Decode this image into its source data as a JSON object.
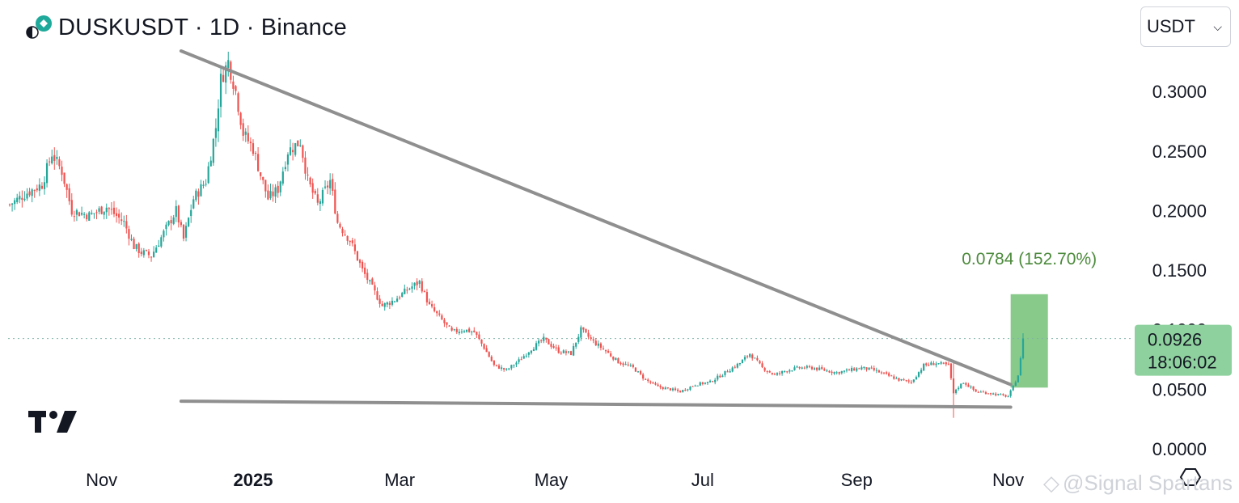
{
  "header": {
    "title": "DUSKUSDT · 1D · Binance",
    "currency_selector": {
      "value": "USDT"
    }
  },
  "chart_data": {
    "type": "candlestick",
    "symbol": "DUSKUSDT",
    "interval": "1D",
    "exchange": "Binance",
    "x_ticks": [
      {
        "label": "Nov",
        "date": "2024-11-01",
        "bold": false
      },
      {
        "label": "2025",
        "date": "2025-01-01",
        "bold": true
      },
      {
        "label": "Mar",
        "date": "2025-03-01",
        "bold": false
      },
      {
        "label": "May",
        "date": "2025-05-01",
        "bold": false
      },
      {
        "label": "Jul",
        "date": "2025-07-01",
        "bold": false
      },
      {
        "label": "Sep",
        "date": "2025-09-01",
        "bold": false
      },
      {
        "label": "Nov",
        "date": "2025-11-01",
        "bold": false
      }
    ],
    "y_ticks": [
      "0.3000",
      "0.2500",
      "0.2000",
      "0.1500",
      "0.1000",
      "0.0500",
      "0.0000"
    ],
    "ylim": [
      0,
      0.34
    ],
    "last_price": {
      "value": "0.0926",
      "countdown": "18:06:02",
      "price": 0.0926
    },
    "price_range_tool": {
      "label": "0.0784 (152.70%)",
      "from_price": 0.0514,
      "to_price": 0.1298,
      "start_date": "2025-11-02",
      "end_date": "2025-11-17"
    },
    "trendlines": [
      {
        "name": "descending resistance",
        "start": {
          "date": "2024-12-03",
          "price": 0.334
        },
        "end": {
          "date": "2025-11-02",
          "price": 0.054
        }
      },
      {
        "name": "horizontal support",
        "start": {
          "date": "2024-12-03",
          "price": 0.04
        },
        "end": {
          "date": "2025-11-02",
          "price": 0.035
        }
      }
    ],
    "price_path": [
      {
        "date": "2024-09-25",
        "price": 0.205
      },
      {
        "date": "2024-10-02",
        "price": 0.215
      },
      {
        "date": "2024-10-08",
        "price": 0.222
      },
      {
        "date": "2024-10-12",
        "price": 0.248
      },
      {
        "date": "2024-10-16",
        "price": 0.233
      },
      {
        "date": "2024-10-20",
        "price": 0.2
      },
      {
        "date": "2024-10-27",
        "price": 0.196
      },
      {
        "date": "2024-11-03",
        "price": 0.203
      },
      {
        "date": "2024-11-10",
        "price": 0.19
      },
      {
        "date": "2024-11-14",
        "price": 0.17
      },
      {
        "date": "2024-11-17",
        "price": 0.165
      },
      {
        "date": "2024-11-21",
        "price": 0.162
      },
      {
        "date": "2024-11-27",
        "price": 0.185
      },
      {
        "date": "2024-12-01",
        "price": 0.2
      },
      {
        "date": "2024-12-04",
        "price": 0.176
      },
      {
        "date": "2024-12-08",
        "price": 0.21
      },
      {
        "date": "2024-12-13",
        "price": 0.225
      },
      {
        "date": "2024-12-17",
        "price": 0.27
      },
      {
        "date": "2024-12-19",
        "price": 0.31
      },
      {
        "date": "2024-12-22",
        "price": 0.325
      },
      {
        "date": "2024-12-25",
        "price": 0.3
      },
      {
        "date": "2024-12-28",
        "price": 0.265
      },
      {
        "date": "2025-01-01",
        "price": 0.252
      },
      {
        "date": "2025-01-04",
        "price": 0.23
      },
      {
        "date": "2025-01-07",
        "price": 0.21
      },
      {
        "date": "2025-01-11",
        "price": 0.218
      },
      {
        "date": "2025-01-15",
        "price": 0.25
      },
      {
        "date": "2025-01-20",
        "price": 0.258
      },
      {
        "date": "2025-01-23",
        "price": 0.225
      },
      {
        "date": "2025-01-27",
        "price": 0.205
      },
      {
        "date": "2025-02-01",
        "price": 0.225
      },
      {
        "date": "2025-02-04",
        "price": 0.19
      },
      {
        "date": "2025-02-09",
        "price": 0.175
      },
      {
        "date": "2025-02-14",
        "price": 0.15
      },
      {
        "date": "2025-02-18",
        "price": 0.135
      },
      {
        "date": "2025-02-22",
        "price": 0.12
      },
      {
        "date": "2025-02-27",
        "price": 0.125
      },
      {
        "date": "2025-03-05",
        "price": 0.135
      },
      {
        "date": "2025-03-09",
        "price": 0.14
      },
      {
        "date": "2025-03-13",
        "price": 0.12
      },
      {
        "date": "2025-03-18",
        "price": 0.108
      },
      {
        "date": "2025-03-22",
        "price": 0.098
      },
      {
        "date": "2025-03-27",
        "price": 0.1
      },
      {
        "date": "2025-03-31",
        "price": 0.098
      },
      {
        "date": "2025-04-04",
        "price": 0.085
      },
      {
        "date": "2025-04-08",
        "price": 0.07
      },
      {
        "date": "2025-04-13",
        "price": 0.066
      },
      {
        "date": "2025-04-18",
        "price": 0.074
      },
      {
        "date": "2025-04-23",
        "price": 0.084
      },
      {
        "date": "2025-04-28",
        "price": 0.092
      },
      {
        "date": "2025-05-04",
        "price": 0.082
      },
      {
        "date": "2025-05-09",
        "price": 0.08
      },
      {
        "date": "2025-05-13",
        "price": 0.1
      },
      {
        "date": "2025-05-18",
        "price": 0.09
      },
      {
        "date": "2025-05-23",
        "price": 0.082
      },
      {
        "date": "2025-05-28",
        "price": 0.073
      },
      {
        "date": "2025-06-03",
        "price": 0.068
      },
      {
        "date": "2025-06-08",
        "price": 0.058
      },
      {
        "date": "2025-06-13",
        "price": 0.052
      },
      {
        "date": "2025-06-18",
        "price": 0.05
      },
      {
        "date": "2025-06-22",
        "price": 0.048
      },
      {
        "date": "2025-06-28",
        "price": 0.054
      },
      {
        "date": "2025-07-04",
        "price": 0.056
      },
      {
        "date": "2025-07-10",
        "price": 0.064
      },
      {
        "date": "2025-07-16",
        "price": 0.072
      },
      {
        "date": "2025-07-20",
        "price": 0.08
      },
      {
        "date": "2025-07-25",
        "price": 0.068
      },
      {
        "date": "2025-07-30",
        "price": 0.062
      },
      {
        "date": "2025-08-04",
        "price": 0.066
      },
      {
        "date": "2025-08-09",
        "price": 0.068
      },
      {
        "date": "2025-08-14",
        "price": 0.068
      },
      {
        "date": "2025-08-19",
        "price": 0.066
      },
      {
        "date": "2025-08-24",
        "price": 0.064
      },
      {
        "date": "2025-08-29",
        "price": 0.066
      },
      {
        "date": "2025-09-03",
        "price": 0.068
      },
      {
        "date": "2025-09-08",
        "price": 0.066
      },
      {
        "date": "2025-09-13",
        "price": 0.062
      },
      {
        "date": "2025-09-18",
        "price": 0.058
      },
      {
        "date": "2025-09-23",
        "price": 0.056
      },
      {
        "date": "2025-09-28",
        "price": 0.07
      },
      {
        "date": "2025-10-03",
        "price": 0.072
      },
      {
        "date": "2025-10-08",
        "price": 0.07
      },
      {
        "date": "2025-10-10",
        "price": 0.048
      },
      {
        "date": "2025-10-14",
        "price": 0.056
      },
      {
        "date": "2025-10-19",
        "price": 0.048
      },
      {
        "date": "2025-10-24",
        "price": 0.047
      },
      {
        "date": "2025-10-29",
        "price": 0.045
      },
      {
        "date": "2025-11-01",
        "price": 0.044
      },
      {
        "date": "2025-11-03",
        "price": 0.052
      },
      {
        "date": "2025-11-05",
        "price": 0.062
      },
      {
        "date": "2025-11-06",
        "price": 0.075
      },
      {
        "date": "2025-11-07",
        "price": 0.0926
      }
    ],
    "spikes": [
      {
        "date": "2025-10-10",
        "high": 0.072,
        "low": 0.026,
        "up": false
      },
      {
        "date": "2025-11-07",
        "high": 0.097,
        "low": 0.075,
        "up": true
      }
    ],
    "colors": {
      "up": "#26a69a",
      "down": "#ef5350",
      "trendline": "#8f8f8f",
      "range_fill": "#81c784",
      "range_text": "#4c8a3c",
      "price_label_bg": "#8fd19e"
    }
  },
  "watermark": {
    "text": "@Signal Spartans"
  }
}
